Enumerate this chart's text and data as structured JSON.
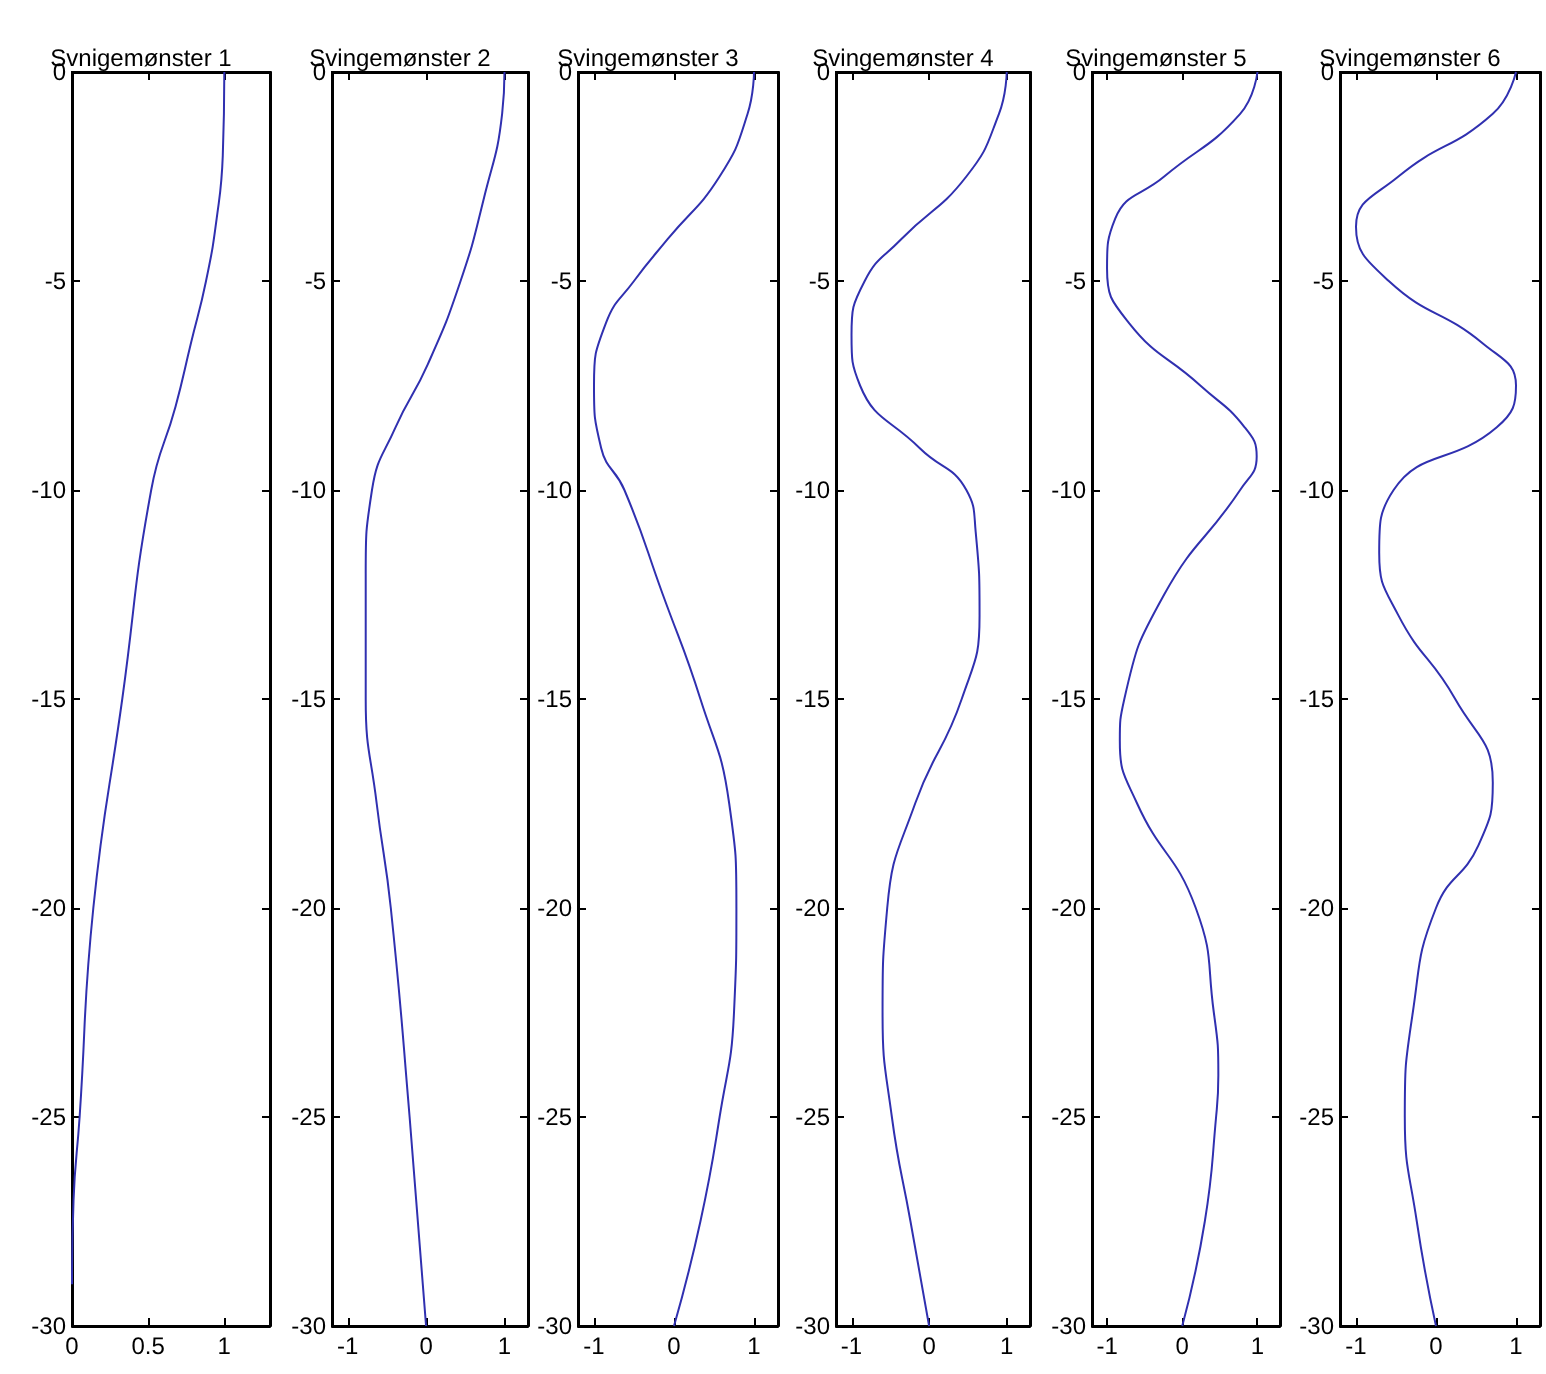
{
  "chart_data": [
    {
      "type": "line",
      "title": "Svnigemønster 1",
      "color": "#3030b0",
      "marker": "none",
      "xlim": [
        0,
        1.3
      ],
      "xticks": [
        0,
        0.5,
        1
      ],
      "ylim": [
        -30,
        0
      ],
      "yticks": [
        -30,
        -25,
        -20,
        -15,
        -10,
        -5,
        0
      ],
      "x": [
        1,
        0.99,
        0.95,
        0.88,
        0.78,
        0.68,
        0.52,
        0.33,
        0.14,
        0.05,
        0.01,
        0
      ],
      "values": [
        0,
        -2,
        -3.5,
        -5,
        -6.5,
        -8,
        -10,
        -15,
        -20,
        -25,
        -27,
        -29
      ]
    },
    {
      "type": "line",
      "title": "Svingemønster 2",
      "color": "#3030b0",
      "marker": "none",
      "xlim": [
        -1.2,
        1.3
      ],
      "xticks": [
        -1,
        0,
        1
      ],
      "ylim": [
        -30,
        0
      ],
      "yticks": [
        -30,
        -25,
        -20,
        -15,
        -10,
        -5,
        0
      ],
      "x": [
        1,
        0.97,
        0.74,
        0.44,
        0.02,
        -0.39,
        -0.69,
        -0.77,
        -0.77,
        -0.63,
        -0.45,
        -0.21,
        0
      ],
      "values": [
        0,
        -1,
        -3,
        -5,
        -7,
        -8.5,
        -10,
        -12,
        -15,
        -17.5,
        -20,
        -25,
        -30
      ]
    },
    {
      "type": "line",
      "title": "Svingemønster 3",
      "color": "#3030b0",
      "marker": "none",
      "xlim": [
        -1.2,
        1.3
      ],
      "xticks": [
        -1,
        0,
        1
      ],
      "ylim": [
        -30,
        0
      ],
      "yticks": [
        -30,
        -25,
        -20,
        -15,
        -10,
        -5,
        0
      ],
      "x": [
        1,
        0.92,
        0.57,
        -0.08,
        -0.5,
        -0.85,
        -1,
        -0.91,
        -0.62,
        -0.14,
        0.33,
        0.69,
        0.78,
        0.75,
        0.57,
        0.33,
        0
      ],
      "values": [
        0,
        -1,
        -2.5,
        -4,
        -5,
        -6,
        -7.5,
        -9,
        -10,
        -12.5,
        -15,
        -17.5,
        -20,
        -22.5,
        -25,
        -27.5,
        -30
      ]
    },
    {
      "type": "line",
      "title": "Svingemønster 4",
      "color": "#3030b0",
      "marker": "none",
      "xlim": [
        -1.2,
        1.3
      ],
      "xticks": [
        -1,
        0,
        1
      ],
      "ylim": [
        -30,
        0
      ],
      "yticks": [
        -30,
        -25,
        -20,
        -15,
        -10,
        -5,
        0
      ],
      "x": [
        1,
        0.9,
        0.48,
        -0.36,
        -0.83,
        -1,
        -0.89,
        -0.12,
        0.48,
        0.6,
        0.65,
        0.42,
        -0.18,
        -0.54,
        -0.6,
        -0.48,
        -0.24,
        0
      ],
      "values": [
        0,
        -1,
        -2.5,
        -4,
        -5,
        -6.3,
        -7.5,
        -9,
        -10,
        -11,
        -13,
        -15,
        -17.5,
        -20,
        -22.5,
        -25,
        -27.5,
        -30
      ]
    },
    {
      "type": "line",
      "title": "Svingemønster 5",
      "color": "#3030b0",
      "marker": "none",
      "xlim": [
        -1.2,
        1.3
      ],
      "xticks": [
        -1,
        0,
        1
      ],
      "ylim": [
        -30,
        0
      ],
      "yticks": [
        -30,
        -25,
        -20,
        -15,
        -10,
        -5,
        0
      ],
      "x": [
        1,
        0.77,
        -0.24,
        -0.89,
        -1,
        -0.71,
        0.24,
        0.83,
        0.99,
        0.77,
        -0.24,
        -0.77,
        -0.83,
        -0.6,
        0.18,
        0.42,
        0.48,
        0.45,
        0.3,
        0
      ],
      "values": [
        0,
        -1,
        -2.5,
        -3.5,
        -4.7,
        -6,
        -7.5,
        -8.5,
        -9.2,
        -10,
        -12.5,
        -15,
        -16,
        -17.5,
        -20,
        -22.5,
        -24,
        -25,
        -27.5,
        -30
      ]
    },
    {
      "type": "line",
      "title": "Svingemønster 6",
      "color": "#3030b0",
      "marker": "none",
      "xlim": [
        -1.2,
        1.3
      ],
      "xticks": [
        -1,
        0,
        1
      ],
      "ylim": [
        -30,
        0
      ],
      "yticks": [
        -30,
        -25,
        -20,
        -15,
        -10,
        -5,
        0
      ],
      "x": [
        1,
        0.71,
        -0.47,
        -1,
        -0.59,
        0.59,
        1,
        0.76,
        -0.53,
        -0.71,
        -0.47,
        0.24,
        0.71,
        0.53,
        0,
        -0.29,
        -0.39,
        -0.24,
        0
      ],
      "values": [
        0,
        -1,
        -2.5,
        -3.7,
        -5,
        -6.5,
        -7.5,
        -8.5,
        -10,
        -11.5,
        -13,
        -15,
        -17,
        -18.5,
        -20,
        -22.5,
        -25,
        -27.5,
        -30
      ]
    }
  ]
}
